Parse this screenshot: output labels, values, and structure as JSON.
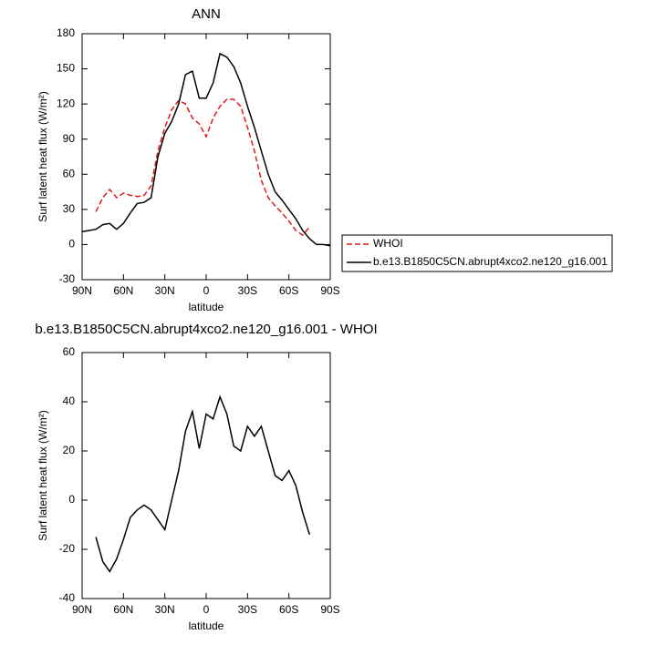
{
  "chart_data": [
    {
      "type": "line",
      "title": "ANN",
      "xlabel": "latitude",
      "ylabel": "Surf latent heat flux (W/m²)",
      "x": [
        90,
        85,
        80,
        75,
        70,
        65,
        60,
        55,
        50,
        45,
        40,
        35,
        30,
        25,
        20,
        15,
        10,
        5,
        0,
        -5,
        -10,
        -15,
        -20,
        -25,
        -30,
        -35,
        -40,
        -45,
        -50,
        -55,
        -60,
        -65,
        -70,
        -75,
        -80,
        -85,
        -90
      ],
      "series": [
        {
          "name": "WHOI",
          "color": "#e41a1c",
          "line_style": "dashed",
          "values": [
            null,
            null,
            28,
            40,
            47,
            40,
            44,
            42,
            41,
            42,
            50,
            80,
            100,
            115,
            123,
            120,
            108,
            103,
            92,
            108,
            118,
            124,
            124,
            118,
            100,
            80,
            55,
            40,
            33,
            27,
            20,
            12,
            8,
            15,
            null,
            null,
            null
          ]
        },
        {
          "name": "b.e13.B1850C5CN.abrupt4xco2.ne120_g16.001",
          "color": "#000000",
          "line_style": "solid",
          "values": [
            11,
            12,
            13,
            17,
            18,
            13,
            18,
            27,
            35,
            36,
            40,
            75,
            95,
            105,
            120,
            145,
            148,
            125,
            125,
            138,
            163,
            160,
            152,
            138,
            118,
            100,
            80,
            60,
            45,
            38,
            30,
            22,
            12,
            5,
            0,
            0,
            -1
          ]
        }
      ],
      "xlim": [
        90,
        -90
      ],
      "xticks": [
        {
          "value": 90,
          "label": "90N"
        },
        {
          "value": 60,
          "label": "60N"
        },
        {
          "value": 30,
          "label": "30N"
        },
        0,
        {
          "value": -30,
          "label": "30S"
        },
        {
          "value": -60,
          "label": "60S"
        },
        {
          "value": -90,
          "label": "90S"
        }
      ],
      "ylim": [
        -30,
        180
      ],
      "yticks": [
        -30,
        0,
        30,
        60,
        90,
        120,
        150,
        180
      ],
      "legend": "right"
    },
    {
      "type": "line",
      "title": "b.e13.B1850C5CN.abrupt4xco2.ne120_g16.001 - WHOI",
      "xlabel": "latitude",
      "ylabel": "Surf latent heat flux (W/m²)",
      "x": [
        80,
        75,
        70,
        65,
        60,
        55,
        50,
        45,
        40,
        35,
        30,
        25,
        20,
        15,
        10,
        5,
        0,
        -5,
        -10,
        -15,
        -20,
        -25,
        -30,
        -35,
        -40,
        -45,
        -50,
        -55,
        -60,
        -65,
        -70,
        -75
      ],
      "series": [
        {
          "color": "#000000",
          "line_style": "solid",
          "values": [
            -15,
            -25,
            -29,
            -24,
            -16,
            -7,
            -4,
            -2,
            -4,
            -8,
            -12,
            0,
            12,
            28,
            36,
            21,
            35,
            33,
            42,
            35,
            22,
            20,
            30,
            26,
            30,
            20,
            10,
            8,
            12,
            6,
            -5,
            -14
          ]
        }
      ],
      "xlim": [
        90,
        -90
      ],
      "xticks": [
        {
          "value": 90,
          "label": "90N"
        },
        {
          "value": 60,
          "label": "60N"
        },
        {
          "value": 30,
          "label": "30N"
        },
        0,
        {
          "value": -30,
          "label": "30S"
        },
        {
          "value": -60,
          "label": "60S"
        },
        {
          "value": -90,
          "label": "90S"
        }
      ],
      "ylim": [
        -40,
        60
      ],
      "yticks": [
        -40,
        -20,
        0,
        20,
        40,
        60
      ]
    }
  ]
}
